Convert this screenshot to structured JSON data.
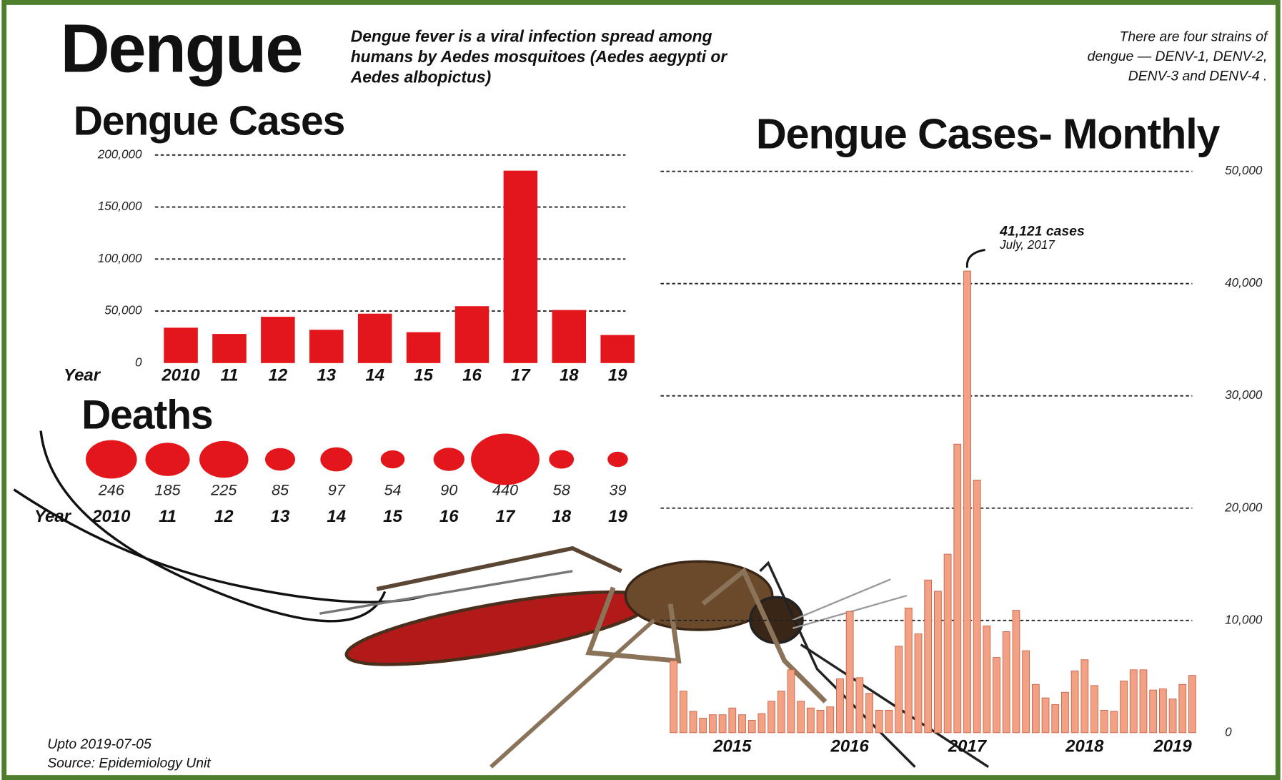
{
  "header": {
    "title": "Dengue",
    "description": [
      "Dengue fever is a viral infection spread among",
      "humans by Aedes mosquitoes (Aedes aegypti or",
      "Aedes albopictus)"
    ],
    "note": [
      "There are four strains of",
      "dengue — DENV-1, DENV-2,",
      "DENV-3 and DENV-4 ."
    ]
  },
  "footer": {
    "updated": "Upto 2019-07-05",
    "source": "Source: Epidemiology Unit"
  },
  "chart_data": [
    {
      "type": "bar",
      "title": "Dengue Cases",
      "x_label": "Year",
      "categories": [
        "2010",
        "11",
        "12",
        "13",
        "14",
        "15",
        "16",
        "17",
        "18",
        "19"
      ],
      "values": [
        34000,
        28000,
        44500,
        32000,
        47500,
        29700,
        54700,
        185000,
        51000,
        27000
      ],
      "color": "#e3161b",
      "ylim": [
        0,
        200000
      ],
      "yticks": [
        0,
        {
          "value": 50000,
          "label": "50,000"
        },
        {
          "value": 100000,
          "label": "100,000"
        },
        {
          "value": 150000,
          "label": "150,000"
        },
        {
          "value": 200000,
          "label": "200,000"
        }
      ],
      "grid": true
    },
    {
      "type": "bubble",
      "title": "Deaths",
      "x_label": "Year",
      "categories": [
        "2010",
        "11",
        "12",
        "13",
        "14",
        "15",
        "16",
        "17",
        "18",
        "19"
      ],
      "values": [
        246,
        185,
        225,
        85,
        97,
        54,
        90,
        440,
        58,
        39
      ],
      "color": "#e3161b"
    },
    {
      "type": "bar",
      "title": "Dengue Cases- Monthly",
      "categories": [
        null,
        null,
        null,
        null,
        null,
        null,
        "2015",
        null,
        null,
        null,
        null,
        null,
        null,
        null,
        null,
        null,
        null,
        null,
        "2016",
        null,
        null,
        null,
        null,
        null,
        null,
        null,
        null,
        null,
        null,
        null,
        "2017",
        null,
        null,
        null,
        null,
        null,
        null,
        null,
        null,
        null,
        null,
        null,
        "2018",
        null,
        null,
        null,
        null,
        null,
        null,
        null,
        null,
        "2019",
        null,
        null
      ],
      "values": [
        6400,
        3700,
        1900,
        1300,
        1600,
        1600,
        2200,
        1600,
        1100,
        1700,
        2800,
        3700,
        5600,
        2800,
        2200,
        2000,
        2300,
        4800,
        10800,
        4900,
        3500,
        2000,
        2000,
        7700,
        11100,
        8800,
        13600,
        12600,
        15900,
        25700,
        41121,
        22500,
        9500,
        6700,
        9000,
        10900,
        7300,
        4300,
        3100,
        2500,
        3600,
        5500,
        6500,
        4200,
        2000,
        1900,
        4600,
        5600,
        5600,
        3800,
        3900,
        3000,
        4300,
        5100
      ],
      "color": "#f2a184",
      "ylim": [
        0,
        50000
      ],
      "yticks": [
        0,
        {
          "value": 10000,
          "label": "10,000"
        },
        {
          "value": 20000,
          "label": "20,000"
        },
        {
          "value": 30000,
          "label": "30,000"
        },
        {
          "value": 40000,
          "label": "40,000"
        },
        {
          "value": 50000,
          "label": "50,000"
        }
      ],
      "grid": true,
      "annotation": [
        "41,121 cases",
        "July, 2017"
      ]
    }
  ]
}
